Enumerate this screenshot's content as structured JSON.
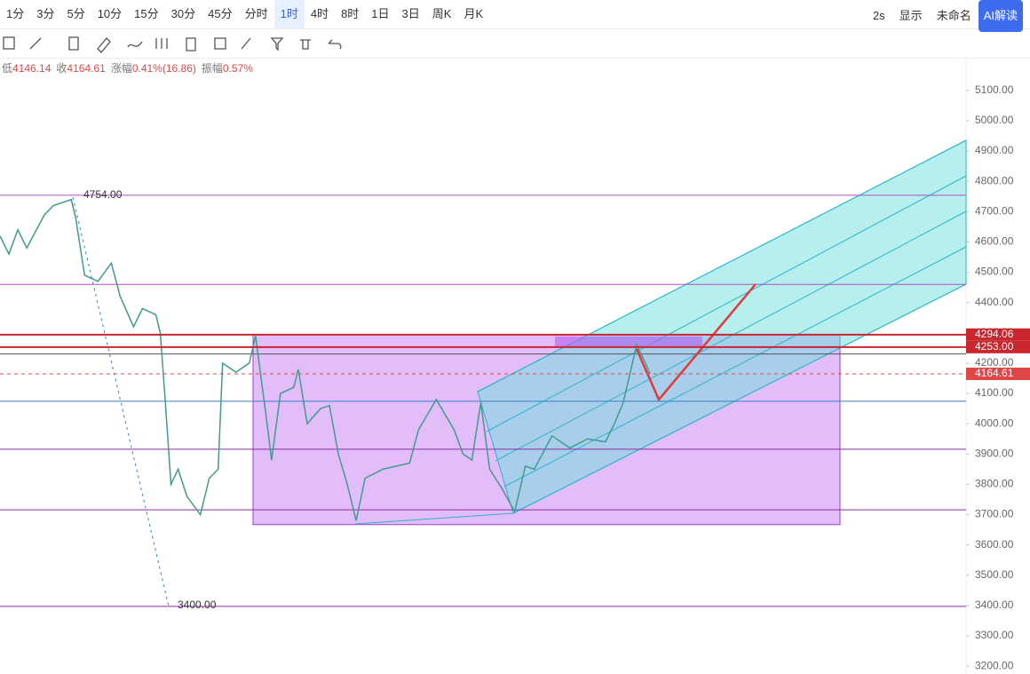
{
  "toolbar": {
    "intervals": [
      "1分",
      "3分",
      "5分",
      "10分",
      "15分",
      "30分",
      "45分",
      "分时",
      "1时",
      "4时",
      "8时",
      "1日",
      "3日",
      "周K",
      "月K"
    ],
    "active": 8,
    "refresh": "2s",
    "display": "显示",
    "layout_name": "未命名",
    "ai_button": "AI解读"
  },
  "info": {
    "low_label": "低",
    "low": "4146.14",
    "close_label": "收",
    "close": "4164.61",
    "change_label": "涨幅",
    "change": "0.41%(16.86)",
    "amplitude_label": "振幅",
    "amplitude": "0.57%"
  },
  "chart_data": {
    "type": "line",
    "ylim": [
      3174,
      5205
    ],
    "xlim": [
      0,
      1085
    ],
    "yticks": [
      {
        "value": 3200,
        "label": "3200.00"
      },
      {
        "value": 3300,
        "label": "3300.00"
      },
      {
        "value": 3400,
        "label": "3400.00"
      },
      {
        "value": 3500,
        "label": "3500.00"
      },
      {
        "value": 3600,
        "label": "3600.00"
      },
      {
        "value": 3700,
        "label": "3700.00"
      },
      {
        "value": 3800,
        "label": "3800.00"
      },
      {
        "value": 3900,
        "label": "3900.00"
      },
      {
        "value": 4000,
        "label": "4000.00"
      },
      {
        "value": 4100,
        "label": "4100.00"
      },
      {
        "value": 4200,
        "label": "4200.00"
      },
      {
        "value": 4300,
        "label": "4300.00"
      },
      {
        "value": 4400,
        "label": "4400.00"
      },
      {
        "value": 4500,
        "label": "4500.00"
      },
      {
        "value": 4600,
        "label": "4600.00"
      },
      {
        "value": 4700,
        "label": "4700.00"
      },
      {
        "value": 4800,
        "label": "4800.00"
      },
      {
        "value": 4900,
        "label": "4900.00"
      },
      {
        "value": 5000,
        "label": "5000.00"
      },
      {
        "value": 5100,
        "label": "5100.00"
      }
    ],
    "series": [
      {
        "name": "price",
        "color": "#3f9c8c",
        "x": [
          0,
          10,
          20,
          30,
          50,
          60,
          80,
          85,
          95,
          110,
          125,
          135,
          150,
          160,
          175,
          180,
          185,
          192,
          200,
          210,
          225,
          235,
          245,
          250,
          265,
          280,
          287,
          300,
          305,
          315,
          330,
          335,
          345,
          360,
          370,
          380,
          390,
          400,
          410,
          430,
          460,
          470,
          490,
          510,
          520,
          530,
          540,
          550,
          565,
          578,
          590,
          600,
          620,
          640,
          660,
          680,
          690,
          700,
          715,
          725,
          730
        ],
        "values": [
          4620,
          4560,
          4640,
          4580,
          4690,
          4720,
          4740,
          4680,
          4490,
          4470,
          4530,
          4420,
          4320,
          4380,
          4360,
          4300,
          4100,
          3800,
          3850,
          3760,
          3700,
          3820,
          3850,
          4200,
          4170,
          4200,
          4290,
          4000,
          3880,
          4100,
          4120,
          4180,
          4000,
          4050,
          4060,
          3900,
          3800,
          3680,
          3820,
          3850,
          3870,
          3980,
          4080,
          3980,
          3900,
          3880,
          4070,
          3850,
          3780,
          3710,
          3860,
          3850,
          3960,
          3920,
          3950,
          3940,
          4000,
          4070,
          4260,
          4200,
          4165
        ]
      }
    ],
    "hlines": [
      {
        "value": 4754,
        "color": "#b04fc4"
      },
      {
        "value": 4460,
        "color": "#b04fc4"
      },
      {
        "value": 4230,
        "color": "#555"
      },
      {
        "value": 4074,
        "color": "#3a7fc4"
      },
      {
        "value": 3916,
        "color": "#8a2ca8"
      },
      {
        "value": 3716,
        "color": "#8a2ca8"
      },
      {
        "value": 3397,
        "color": "#8a2ca8"
      }
    ],
    "box": {
      "top": 4294,
      "bottom": 3667,
      "color": "#d9a7f7"
    },
    "price_tags": [
      {
        "value": 4294.06,
        "label": "4294.06",
        "color": "#c9262e"
      },
      {
        "value": 4253,
        "label": "4253.00",
        "color": "#c9262e"
      },
      {
        "value": 4164.61,
        "label": "4164.61",
        "color": "#e04848"
      }
    ],
    "annotations": [
      {
        "value": 4754,
        "label": "4754.00"
      },
      {
        "value": 3400,
        "label": "3400.00"
      }
    ]
  }
}
